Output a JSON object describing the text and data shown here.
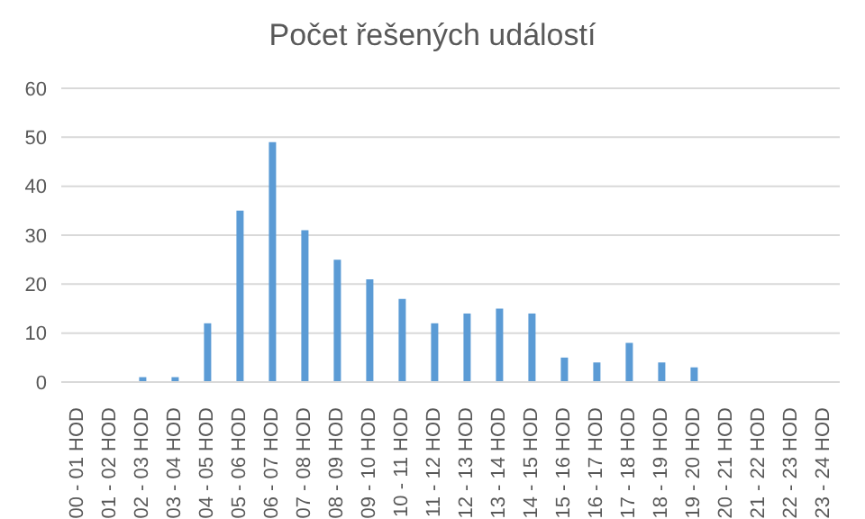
{
  "chart_data": {
    "type": "bar",
    "title": "Počet řešených událostí",
    "categories": [
      "00 - 01 HOD",
      "01 - 02 HOD",
      "02 - 03 HOD",
      "03 - 04 HOD",
      "04 - 05 HOD",
      "05 - 06 HOD",
      "06 - 07 HOD",
      "07 - 08 HOD",
      "08 - 09 HOD",
      "09 - 10 HOD",
      "10 - 11 HOD",
      "11 - 12 HOD",
      "12 - 13 HOD",
      "13 - 14 HOD",
      "14 - 15 HOD",
      "15 - 16 HOD",
      "16 - 17 HOD",
      "17 - 18 HOD",
      "18 - 19 HOD",
      "19 - 20 HOD",
      "20 - 21 HOD",
      "21 - 22 HOD",
      "22 - 23 HOD",
      "23 - 24 HOD"
    ],
    "values": [
      0,
      0,
      1,
      1,
      12,
      35,
      49,
      31,
      25,
      21,
      17,
      12,
      14,
      15,
      14,
      5,
      4,
      8,
      4,
      3,
      0,
      0,
      0,
      0
    ],
    "color": "#5b9bd5",
    "ylim": [
      0,
      60
    ],
    "yticks": [
      0,
      10,
      20,
      30,
      40,
      50,
      60
    ],
    "grid": "y"
  }
}
